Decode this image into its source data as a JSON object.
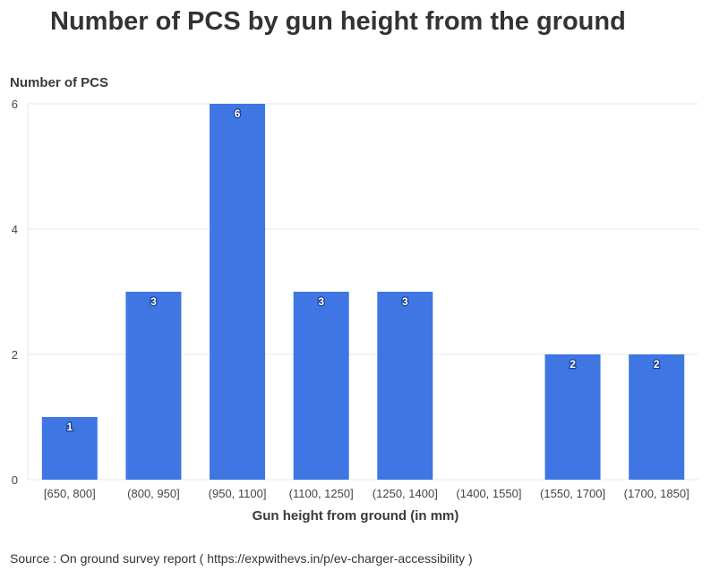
{
  "chart_data": {
    "type": "bar",
    "title": "Number of PCS by gun height from the ground",
    "ylabel": "Number of PCS",
    "xlabel": "Gun height from ground (in mm)",
    "categories": [
      "[650, 800]",
      "(800, 950]",
      "(950, 1100]",
      "(1100, 1250]",
      "(1250, 1400]",
      "(1400, 1550]",
      "(1550, 1700]",
      "(1700, 1850]"
    ],
    "values": [
      1,
      3,
      6,
      3,
      3,
      0,
      2,
      2
    ],
    "value_labels": [
      "1",
      "3",
      "6",
      "3",
      "3",
      "",
      "2",
      "2"
    ],
    "ylim": [
      0,
      6
    ],
    "yticks": [
      0,
      2,
      4,
      6
    ],
    "grid": true,
    "bar_color": "#3f76e4"
  },
  "source": "Source : On ground survey report ( https://expwithevs.in/p/ev-charger-accessibility )"
}
